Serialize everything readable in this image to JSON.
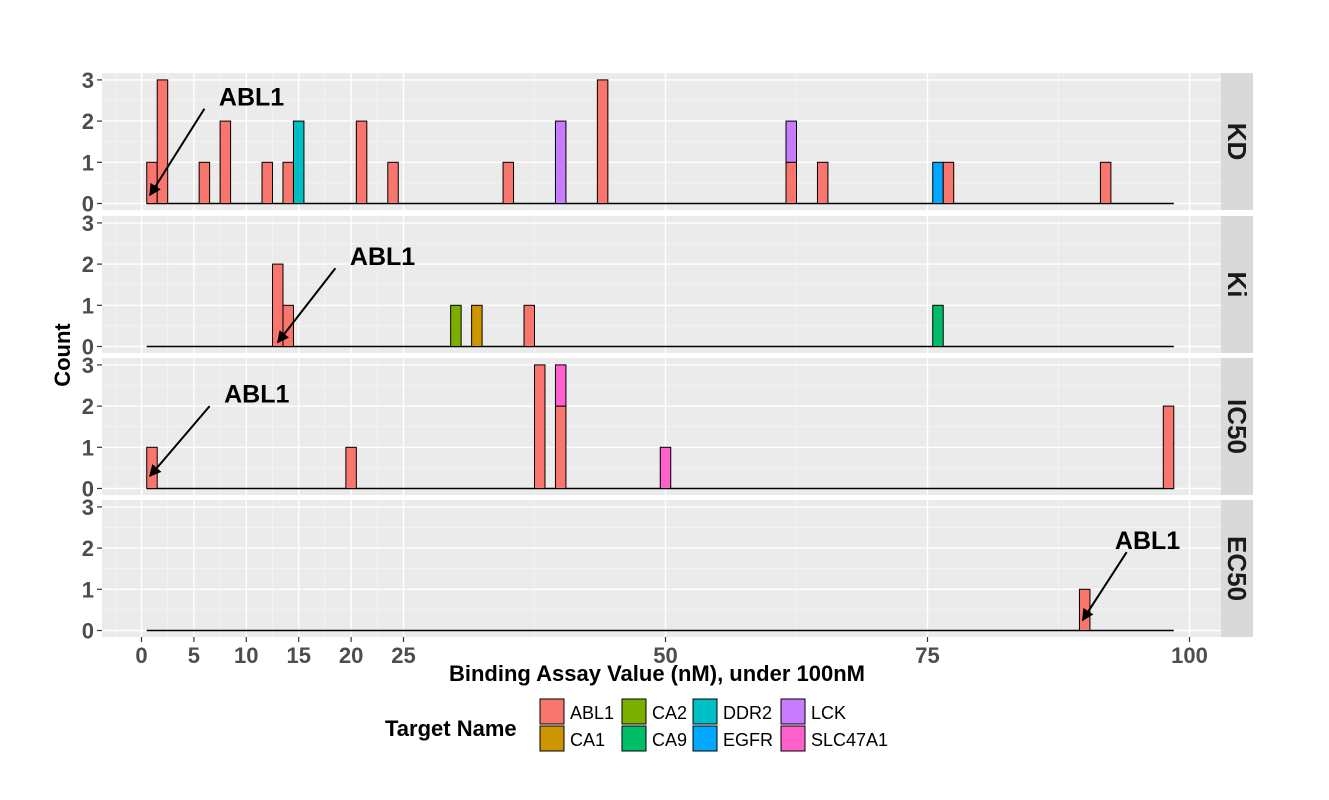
{
  "chart_data": {
    "type": "bar",
    "subtype": "faceted stacked histogram",
    "xlabel": "Binding Assay Value (nM), under 100nM",
    "ylabel": "Count",
    "xlim": [
      -3,
      102
    ],
    "ylim": [
      0,
      3.1
    ],
    "x_ticks": [
      0,
      5,
      10,
      15,
      20,
      25,
      50,
      75,
      100
    ],
    "y_ticks": [
      0,
      1,
      2,
      3
    ],
    "bin_width": 1,
    "range_line": [
      0.5,
      98.5
    ],
    "grid": true,
    "colors": {
      "ABL1": "#F8766D",
      "CA1": "#CD9600",
      "CA2": "#7CAE00",
      "CA9": "#00BE67",
      "DDR2": "#00BFC4",
      "EGFR": "#00A9FF",
      "LCK": "#C77CFF",
      "SLC47A1": "#FF61CC"
    },
    "legend": {
      "title": "Target Name",
      "position": "bottom",
      "entries": [
        "ABL1",
        "CA1",
        "CA2",
        "CA9",
        "DDR2",
        "EGFR",
        "LCK",
        "SLC47A1"
      ]
    },
    "facets": [
      {
        "label": "KD",
        "bars": [
          {
            "x": 1,
            "stack": [
              {
                "target": "ABL1",
                "count": 1
              }
            ]
          },
          {
            "x": 2,
            "stack": [
              {
                "target": "ABL1",
                "count": 3
              }
            ]
          },
          {
            "x": 6,
            "stack": [
              {
                "target": "ABL1",
                "count": 1
              }
            ]
          },
          {
            "x": 8,
            "stack": [
              {
                "target": "ABL1",
                "count": 2
              }
            ]
          },
          {
            "x": 12,
            "stack": [
              {
                "target": "ABL1",
                "count": 1
              }
            ]
          },
          {
            "x": 14,
            "stack": [
              {
                "target": "ABL1",
                "count": 1
              }
            ]
          },
          {
            "x": 15,
            "stack": [
              {
                "target": "DDR2",
                "count": 2
              }
            ]
          },
          {
            "x": 21,
            "stack": [
              {
                "target": "ABL1",
                "count": 2
              }
            ]
          },
          {
            "x": 24,
            "stack": [
              {
                "target": "ABL1",
                "count": 1
              }
            ]
          },
          {
            "x": 35,
            "stack": [
              {
                "target": "ABL1",
                "count": 1
              }
            ]
          },
          {
            "x": 40,
            "stack": [
              {
                "target": "LCK",
                "count": 2
              }
            ]
          },
          {
            "x": 44,
            "stack": [
              {
                "target": "ABL1",
                "count": 3
              }
            ]
          },
          {
            "x": 62,
            "stack": [
              {
                "target": "ABL1",
                "count": 1
              },
              {
                "target": "LCK",
                "count": 1
              }
            ]
          },
          {
            "x": 65,
            "stack": [
              {
                "target": "ABL1",
                "count": 1
              }
            ]
          },
          {
            "x": 76,
            "stack": [
              {
                "target": "EGFR",
                "count": 1
              }
            ]
          },
          {
            "x": 77,
            "stack": [
              {
                "target": "ABL1",
                "count": 1
              }
            ]
          },
          {
            "x": 92,
            "stack": [
              {
                "target": "ABL1",
                "count": 1
              }
            ]
          }
        ],
        "annotation": {
          "text": "ABL1",
          "text_at": [
            10.5,
            2.6
          ],
          "arrow_from": [
            6,
            2.3
          ],
          "arrow_to": [
            0.8,
            0.2
          ]
        }
      },
      {
        "label": "Ki",
        "bars": [
          {
            "x": 13,
            "stack": [
              {
                "target": "ABL1",
                "count": 2
              }
            ]
          },
          {
            "x": 14,
            "stack": [
              {
                "target": "ABL1",
                "count": 1
              }
            ]
          },
          {
            "x": 30,
            "stack": [
              {
                "target": "CA2",
                "count": 1
              }
            ]
          },
          {
            "x": 32,
            "stack": [
              {
                "target": "CA1",
                "count": 1
              }
            ]
          },
          {
            "x": 37,
            "stack": [
              {
                "target": "ABL1",
                "count": 1
              }
            ]
          },
          {
            "x": 76,
            "stack": [
              {
                "target": "CA9",
                "count": 1
              }
            ]
          }
        ],
        "annotation": {
          "text": "ABL1",
          "text_at": [
            23,
            2.2
          ],
          "arrow_from": [
            18.5,
            1.9
          ],
          "arrow_to": [
            13,
            0.1
          ]
        }
      },
      {
        "label": "IC50",
        "bars": [
          {
            "x": 1,
            "stack": [
              {
                "target": "ABL1",
                "count": 1
              }
            ]
          },
          {
            "x": 20,
            "stack": [
              {
                "target": "ABL1",
                "count": 1
              }
            ]
          },
          {
            "x": 38,
            "stack": [
              {
                "target": "ABL1",
                "count": 3
              }
            ]
          },
          {
            "x": 40,
            "stack": [
              {
                "target": "ABL1",
                "count": 2
              },
              {
                "target": "SLC47A1",
                "count": 1
              }
            ]
          },
          {
            "x": 50,
            "stack": [
              {
                "target": "SLC47A1",
                "count": 1
              }
            ]
          },
          {
            "x": 98,
            "stack": [
              {
                "target": "ABL1",
                "count": 2
              }
            ]
          }
        ],
        "annotation": {
          "text": "ABL1",
          "text_at": [
            11,
            2.3
          ],
          "arrow_from": [
            6.5,
            2.0
          ],
          "arrow_to": [
            0.8,
            0.3
          ]
        }
      },
      {
        "label": "EC50",
        "bars": [
          {
            "x": 90,
            "stack": [
              {
                "target": "ABL1",
                "count": 1
              }
            ]
          }
        ],
        "annotation": {
          "text": "ABL1",
          "text_at": [
            96,
            2.2
          ],
          "arrow_from": [
            94,
            1.9
          ],
          "arrow_to": [
            89.8,
            0.25
          ]
        }
      }
    ]
  }
}
